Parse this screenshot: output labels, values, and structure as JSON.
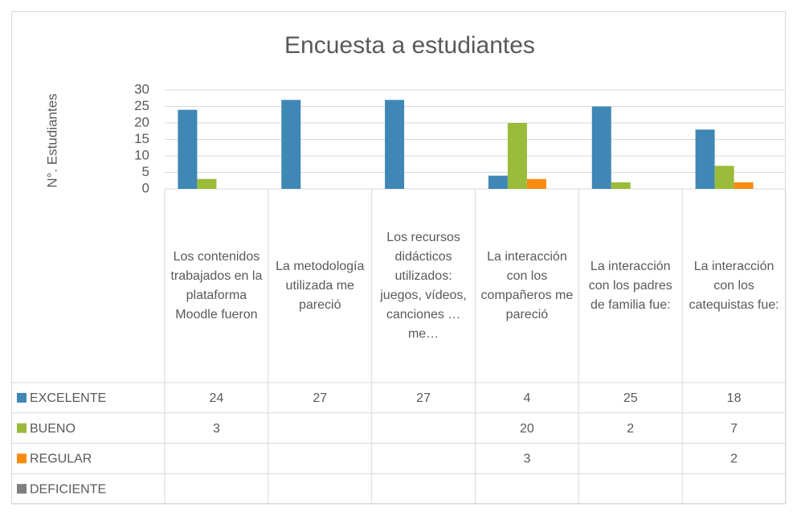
{
  "chart_data": {
    "type": "bar",
    "title": "Encuesta a estudiantes",
    "y_label": "N°. Estudiantes",
    "categories": [
      "Los contenidos trabajados en la plataforma Moodle fueron",
      "La metodología utilizada me pareció",
      "Los recursos didácticos utilizados: juegos, vídeos, canciones … me…",
      "La interacción con los compañeros me pareció",
      "La interacción con los padres de familia fue:",
      "La interacción con los catequistas fue:"
    ],
    "series": [
      {
        "name": "EXCELENTE",
        "color": "#3f87b5",
        "values": [
          24,
          27,
          27,
          4,
          25,
          18
        ]
      },
      {
        "name": "BUENO",
        "color": "#9bbb3b",
        "values": [
          3,
          null,
          null,
          20,
          2,
          7
        ]
      },
      {
        "name": "REGULAR",
        "color": "#f98b0f",
        "values": [
          null,
          null,
          null,
          3,
          null,
          2
        ]
      },
      {
        "name": "DEFICIENTE",
        "color": "#7f7f7f",
        "values": [
          null,
          null,
          null,
          null,
          null,
          null
        ]
      }
    ],
    "ylim": [
      0,
      30
    ],
    "yticks": [
      0,
      5,
      10,
      15,
      20,
      25,
      30
    ],
    "grid": true,
    "data_table": true
  }
}
